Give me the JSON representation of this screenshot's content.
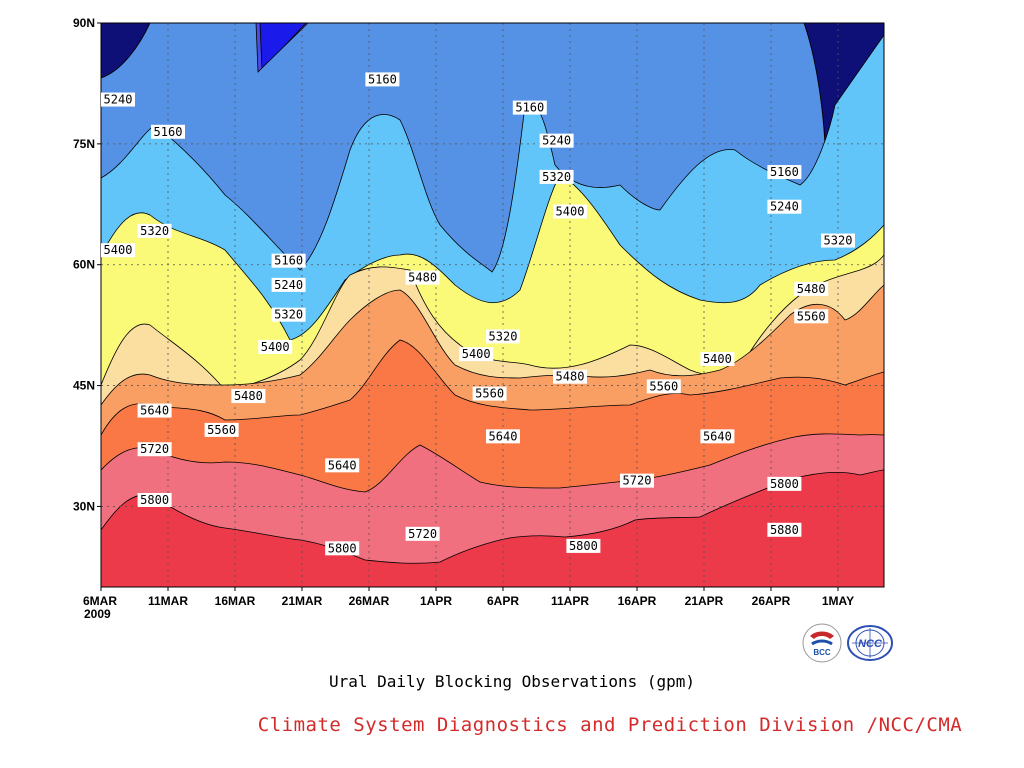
{
  "title": "Ural Daily Blocking Observations (gpm)",
  "credit": "Climate System Diagnostics and Prediction Division /NCC/CMA",
  "logos": {
    "left_text": "BCC",
    "right_text": "NCC"
  },
  "colors": {
    "credit": "#d42a2a",
    "grid": "#555555"
  },
  "chart_data": {
    "type": "heatmap",
    "subtype": "filled-contour",
    "title": "Ural Daily Blocking Observations (gpm)",
    "x_axis": {
      "ticks": [
        "6MAR",
        "11MAR",
        "16MAR",
        "21MAR",
        "26MAR",
        "1APR",
        "6APR",
        "11APR",
        "16APR",
        "21APR",
        "26APR",
        "1MAY"
      ],
      "first_tick_sub": "2009",
      "range": [
        "2009-03-06",
        "2009-05-04"
      ]
    },
    "y_axis": {
      "ticks": [
        "30N",
        "45N",
        "60N",
        "75N",
        "90N"
      ],
      "ticks_deg": [
        30,
        45,
        60,
        75,
        90
      ],
      "range": [
        20,
        90
      ]
    },
    "levels": [
      5160,
      5240,
      5320,
      5400,
      5480,
      5560,
      5640,
      5720,
      5800,
      5880
    ],
    "fill_colors": [
      "#0f0f78",
      "#1a1aea",
      "#4a4ae6",
      "#5592e6",
      "#62c5fa",
      "#fafa78",
      "#fadfa0",
      "#fa9f64",
      "#fa7846",
      "#f07080",
      "#ec3a4a"
    ],
    "grid": true,
    "contour_labels": [
      {
        "text": "5240",
        "date": "2009-03-06",
        "lat": 80.5
      },
      {
        "text": "5160",
        "date": "2009-03-11",
        "lat": 76.5
      },
      {
        "text": "5320",
        "date": "2009-03-10",
        "lat": 64.2
      },
      {
        "text": "5400",
        "date": "2009-03-06",
        "lat": 61.8
      },
      {
        "text": "5160",
        "date": "2009-03-20",
        "lat": 60.5
      },
      {
        "text": "5240",
        "date": "2009-03-20",
        "lat": 57.5
      },
      {
        "text": "5320",
        "date": "2009-03-20",
        "lat": 53.8
      },
      {
        "text": "5400",
        "date": "2009-03-19",
        "lat": 49.8
      },
      {
        "text": "5480",
        "date": "2009-03-17",
        "lat": 43.7
      },
      {
        "text": "5560",
        "date": "2009-03-15",
        "lat": 39.5
      },
      {
        "text": "5640",
        "date": "2009-03-10",
        "lat": 41.9
      },
      {
        "text": "5720",
        "date": "2009-03-10",
        "lat": 37.1
      },
      {
        "text": "5800",
        "date": "2009-03-10",
        "lat": 30.8
      },
      {
        "text": "5160",
        "date": "2009-03-27",
        "lat": 83.0
      },
      {
        "text": "5480",
        "date": "2009-03-30",
        "lat": 58.4
      },
      {
        "text": "5640",
        "date": "2009-03-24",
        "lat": 35.1
      },
      {
        "text": "5720",
        "date": "2009-03-30",
        "lat": 26.6
      },
      {
        "text": "5800",
        "date": "2009-03-24",
        "lat": 24.8
      },
      {
        "text": "5160",
        "date": "2009-04-07",
        "lat": 79.5
      },
      {
        "text": "5240",
        "date": "2009-04-09",
        "lat": 75.4
      },
      {
        "text": "5320",
        "date": "2009-04-09",
        "lat": 70.9
      },
      {
        "text": "5400",
        "date": "2009-04-10",
        "lat": 66.6
      },
      {
        "text": "5320",
        "date": "2009-04-05",
        "lat": 51.1
      },
      {
        "text": "5400",
        "date": "2009-04-03",
        "lat": 48.9
      },
      {
        "text": "5560",
        "date": "2009-04-04",
        "lat": 44.0
      },
      {
        "text": "5640",
        "date": "2009-04-05",
        "lat": 38.7
      },
      {
        "text": "5480",
        "date": "2009-04-10",
        "lat": 46.1
      },
      {
        "text": "5720",
        "date": "2009-04-15",
        "lat": 33.2
      },
      {
        "text": "5800",
        "date": "2009-04-11",
        "lat": 25.1
      },
      {
        "text": "5560",
        "date": "2009-04-17",
        "lat": 44.9
      },
      {
        "text": "5640",
        "date": "2009-04-21",
        "lat": 38.7
      },
      {
        "text": "5400",
        "date": "2009-04-21",
        "lat": 48.3
      },
      {
        "text": "5160",
        "date": "2009-04-26",
        "lat": 71.5
      },
      {
        "text": "5240",
        "date": "2009-04-26",
        "lat": 67.2
      },
      {
        "text": "5320",
        "date": "2009-04-30",
        "lat": 63.0
      },
      {
        "text": "5480",
        "date": "2009-04-28",
        "lat": 57.0
      },
      {
        "text": "5560",
        "date": "2009-04-28",
        "lat": 53.6
      },
      {
        "text": "5800",
        "date": "2009-04-26",
        "lat": 32.8
      },
      {
        "text": "5880",
        "date": "2009-04-26",
        "lat": 27.1
      }
    ]
  }
}
